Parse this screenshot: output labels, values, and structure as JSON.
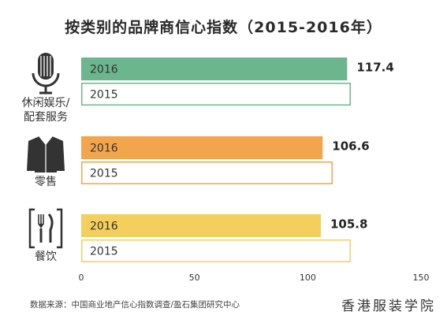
{
  "chart_data": {
    "type": "bar",
    "orientation": "horizontal",
    "title": "按类别的品牌商信心指数（2015-2016年）",
    "categories": [
      "休闲娱乐/配套服务",
      "零售",
      "餐饮"
    ],
    "category_icons": [
      "microphone-icon",
      "shirt-icon",
      "fork-knife-icon"
    ],
    "series": [
      {
        "name": "2016",
        "values": [
          117.4,
          106.6,
          105.8
        ],
        "colors": [
          "#6cb68e",
          "#f3a54d",
          "#f4cf5e"
        ]
      },
      {
        "name": "2015",
        "values": [
          119,
          111,
          119
        ],
        "colors": [
          "#6cb68e",
          "#f3a54d",
          "#f4cf5e"
        ]
      }
    ],
    "data_labels": [
      "117.4",
      "106.6",
      "105.8"
    ],
    "xlim": [
      0,
      150
    ],
    "xticks": [
      0,
      50,
      100,
      150
    ],
    "legend": "none",
    "grid": false
  },
  "footer": {
    "source": "数据来源：中国商业地产信心指数调查/盈石集团研究中心",
    "watermark": "香港服装学院"
  }
}
